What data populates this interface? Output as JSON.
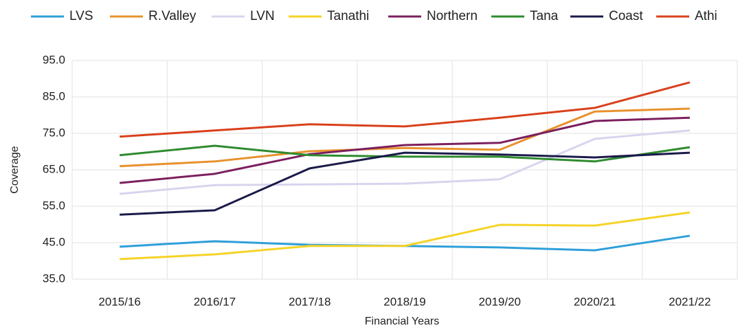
{
  "chart_data": {
    "type": "line",
    "x_label": "Financial Years",
    "y_label": "Coverage",
    "categories": [
      "2015/16",
      "2016/17",
      "2017/18",
      "2018/19",
      "2019/20",
      "2020/21",
      "2021/22"
    ],
    "series": [
      {
        "name": "LVS",
        "color": "#2e9fd9",
        "values": [
          43.9,
          45.4,
          44.4,
          44.1,
          43.7,
          42.9,
          46.9
        ]
      },
      {
        "name": "R.Valley",
        "color": "#e8912d",
        "values": [
          66.0,
          67.3,
          70.1,
          71.0,
          70.5,
          81.0,
          81.8
        ]
      },
      {
        "name": "LVN",
        "color": "#d8d4ee",
        "values": [
          58.4,
          60.8,
          61.0,
          61.2,
          62.4,
          73.5,
          75.8
        ]
      },
      {
        "name": "Tanathi",
        "color": "#f5d327",
        "values": [
          40.5,
          41.8,
          44.1,
          44.1,
          49.9,
          49.7,
          53.3
        ]
      },
      {
        "name": "Northern",
        "color": "#7b1f5e",
        "values": [
          61.4,
          63.9,
          69.3,
          71.8,
          72.4,
          78.4,
          79.3
        ]
      },
      {
        "name": "Tana",
        "color": "#2e8b2e",
        "values": [
          69.0,
          71.6,
          69.0,
          68.6,
          68.6,
          67.3,
          71.2
        ]
      },
      {
        "name": "Coast",
        "color": "#1a1a4a",
        "values": [
          52.7,
          53.9,
          65.4,
          69.7,
          69.2,
          68.4,
          69.7
        ]
      },
      {
        "name": "Athi",
        "color": "#d9401c",
        "values": [
          74.1,
          75.8,
          77.5,
          76.9,
          79.3,
          82.0,
          89.0
        ]
      }
    ],
    "ylim": [
      35,
      95
    ],
    "yticks": [
      {
        "value": 35,
        "label": "35.0"
      },
      {
        "value": 45,
        "label": "45.0"
      },
      {
        "value": 55,
        "label": "55.0"
      },
      {
        "value": 65,
        "label": "65.0"
      },
      {
        "value": 75,
        "label": "75.0"
      },
      {
        "value": 85,
        "label": "85.0"
      },
      {
        "value": 95,
        "label": "95.0"
      }
    ],
    "grid": true,
    "legend": "top"
  }
}
